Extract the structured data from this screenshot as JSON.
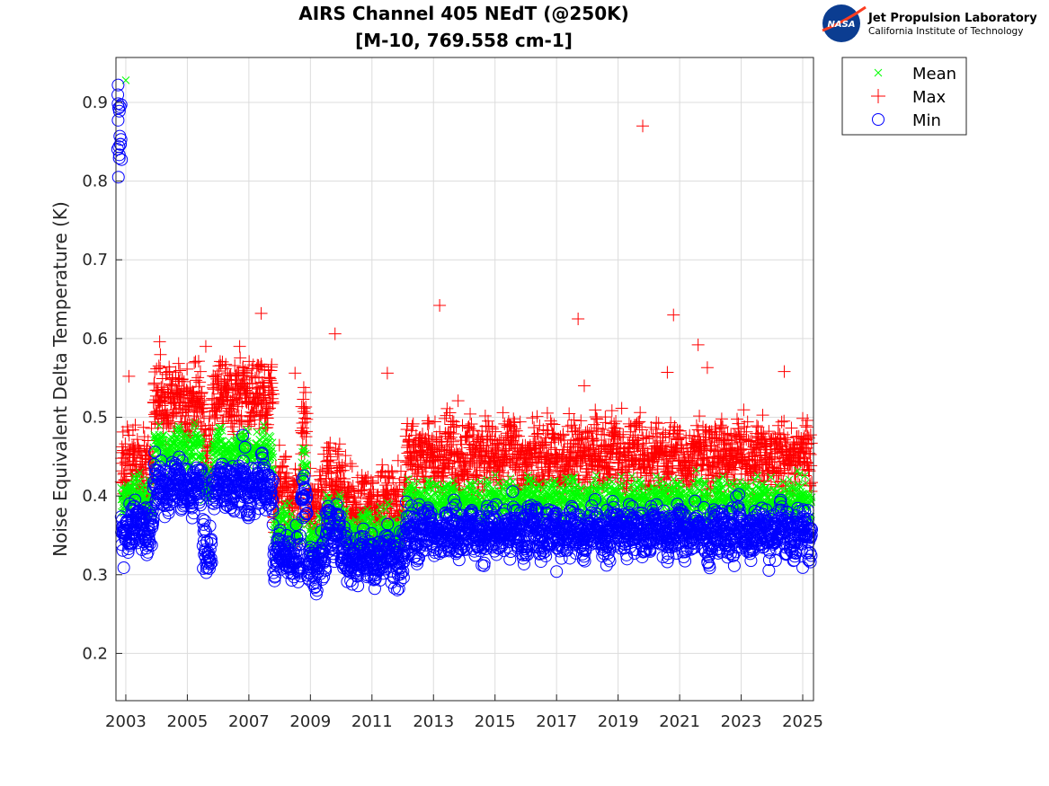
{
  "chart_data": {
    "type": "scatter",
    "title": "AIRS Channel 405 NEdT (@250K)",
    "subtitle": "[M-10, 769.558 cm-1]",
    "xlabel": "",
    "ylabel": "Noise Equivalent Delta Temperature (K)",
    "xlim": [
      2002.68,
      2025.35
    ],
    "ylim": [
      0.14,
      0.957
    ],
    "xticks": [
      "2003",
      "2005",
      "2007",
      "2009",
      "2011",
      "2013",
      "2015",
      "2017",
      "2019",
      "2021",
      "2023",
      "2025"
    ],
    "yticks": [
      "0.2",
      "0.3",
      "0.4",
      "0.5",
      "0.6",
      "0.7",
      "0.8",
      "0.9"
    ],
    "grid": true,
    "legend_placement": "outside-top-right",
    "colors": {
      "Mean": "#00ff00",
      "Max": "#ff0000",
      "Min": "#0000ff"
    },
    "series": [
      {
        "name": "Mean",
        "marker": "x"
      },
      {
        "name": "Max",
        "marker": "+"
      },
      {
        "name": "Min",
        "marker": "o"
      }
    ],
    "segments": [
      {
        "from": 2002.72,
        "to": 2002.85,
        "min": 0.855,
        "mean": 0.93,
        "max": 0.93
      },
      {
        "from": 2002.85,
        "to": 2003.9,
        "min": 0.36,
        "mean": 0.4,
        "max": 0.44
      },
      {
        "from": 2003.9,
        "to": 2005.5,
        "min": 0.41,
        "mean": 0.46,
        "max": 0.52
      },
      {
        "from": 2005.5,
        "to": 2005.8,
        "min": 0.335,
        "mean": 0.42,
        "max": 0.47
      },
      {
        "from": 2005.8,
        "to": 2007.8,
        "min": 0.41,
        "mean": 0.46,
        "max": 0.53
      },
      {
        "from": 2007.8,
        "to": 2008.7,
        "min": 0.32,
        "mean": 0.36,
        "max": 0.4
      },
      {
        "from": 2008.7,
        "to": 2008.9,
        "min": 0.39,
        "mean": 0.43,
        "max": 0.49
      },
      {
        "from": 2008.9,
        "to": 2009.5,
        "min": 0.315,
        "mean": 0.35,
        "max": 0.39
      },
      {
        "from": 2009.5,
        "to": 2010.0,
        "min": 0.36,
        "mean": 0.38,
        "max": 0.43
      },
      {
        "from": 2010.0,
        "to": 2012.1,
        "min": 0.32,
        "mean": 0.355,
        "max": 0.39
      },
      {
        "from": 2012.1,
        "to": 2025.3,
        "min": 0.355,
        "mean": 0.395,
        "max": 0.45
      }
    ],
    "outliers": {
      "Mean": [
        [
          2003.0,
          0.928
        ]
      ],
      "Max": [
        [
          2003.1,
          0.552
        ],
        [
          2004.1,
          0.596
        ],
        [
          2005.6,
          0.59
        ],
        [
          2006.7,
          0.59
        ],
        [
          2007.4,
          0.632
        ],
        [
          2008.5,
          0.556
        ],
        [
          2009.8,
          0.606
        ],
        [
          2011.5,
          0.556
        ],
        [
          2013.2,
          0.642
        ],
        [
          2013.8,
          0.521
        ],
        [
          2017.7,
          0.625
        ],
        [
          2017.9,
          0.54
        ],
        [
          2019.8,
          0.87
        ],
        [
          2020.6,
          0.557
        ],
        [
          2020.8,
          0.63
        ],
        [
          2021.6,
          0.592
        ],
        [
          2021.9,
          0.563
        ],
        [
          2024.4,
          0.558
        ]
      ],
      "Min": [
        [
          2002.75,
          0.922
        ],
        [
          2002.76,
          0.805
        ],
        [
          2010.2,
          0.291
        ],
        [
          2017.0,
          0.304
        ],
        [
          2025.0,
          0.309
        ],
        [
          2006.8,
          0.477
        ]
      ]
    }
  },
  "logo": {
    "emblem": "NASA",
    "name": "Jet Propulsion Laboratory",
    "subtitle": "California Institute of Technology"
  }
}
